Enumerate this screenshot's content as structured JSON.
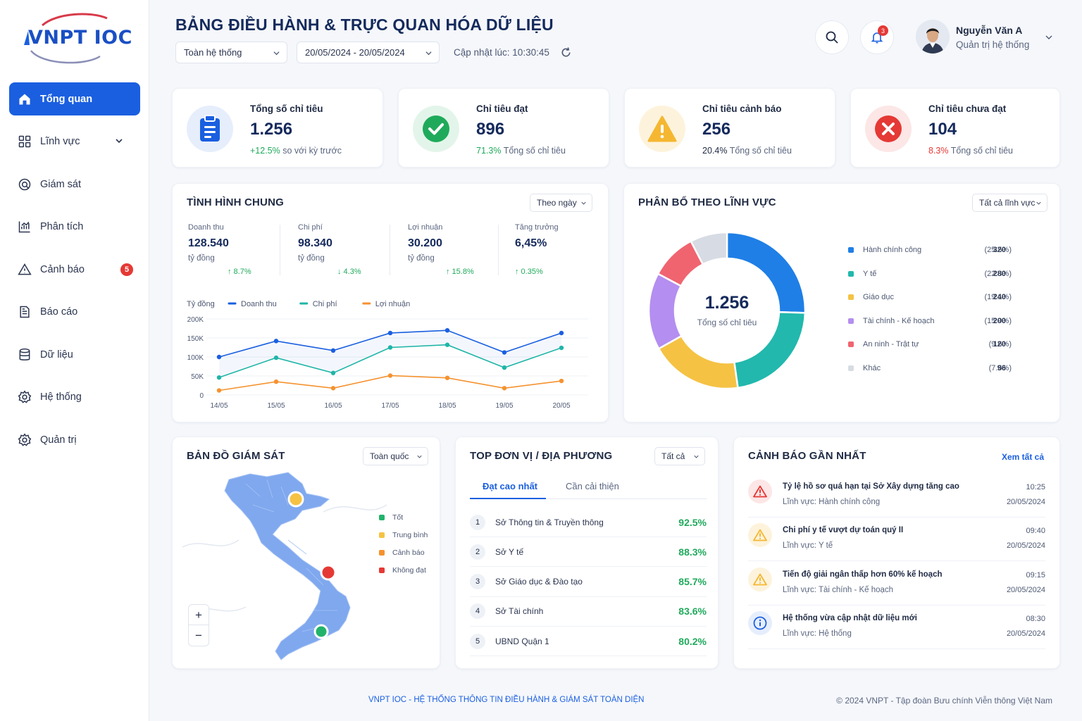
{
  "brand": {
    "logo_text": "VNPT IOC"
  },
  "sidebar": {
    "items": [
      {
        "label": "Tổng quan",
        "icon": "home-icon"
      },
      {
        "label": "Lĩnh vực",
        "icon": "grid-icon"
      },
      {
        "label": "Giám sát",
        "icon": "monitor-icon"
      },
      {
        "label": "Phân tích",
        "icon": "chart-icon"
      },
      {
        "label": "Cảnh báo",
        "icon": "warning-icon",
        "badge": "5"
      },
      {
        "label": "Báo cáo",
        "icon": "report-icon"
      },
      {
        "label": "Dữ liệu",
        "icon": "database-icon"
      },
      {
        "label": "Hệ thống",
        "icon": "settings-icon"
      },
      {
        "label": "Quản trị",
        "icon": "admin-icon"
      }
    ]
  },
  "header": {
    "title": "BẢNG ĐIỀU HÀNH & TRỰC QUAN HÓA DỮ LIỆU",
    "scope_select": "Toàn hệ thống",
    "date_range": "20/05/2024 - 20/05/2024",
    "updated": "Cập nhật lúc: 10:30:45",
    "notification_count": "3",
    "user_name": "Nguyễn Văn A",
    "user_role": "Quản trị hệ thống"
  },
  "kpis": [
    {
      "label": "Tổng số chỉ tiêu",
      "value": "1.256",
      "change": "+12.5%",
      "sub": "so với kỳ trước",
      "color": "#1a5fe0",
      "change_color": "#1faa5b"
    },
    {
      "label": "Chỉ tiêu đạt",
      "value": "896",
      "change": "71.3%",
      "sub": "Tổng số chỉ tiêu",
      "color": "#1faa5b",
      "change_color": "#1faa5b"
    },
    {
      "label": "Chỉ tiêu cảnh báo",
      "value": "256",
      "change": "20.4%",
      "sub": "Tổng số chỉ tiêu",
      "color": "#f5b731",
      "change_color": "#1f2a44"
    },
    {
      "label": "Chỉ tiêu chưa đạt",
      "value": "104",
      "change": "8.3%",
      "sub": "Tổng số chỉ tiêu",
      "color": "#e53935",
      "change_color": "#e53935"
    }
  ],
  "overview": {
    "title": "TÌNH HÌNH CHUNG",
    "period_select": "Theo ngày",
    "stats": [
      {
        "label": "Doanh thu",
        "value": "128.540",
        "unit": "tỷ đồng",
        "change": "↑ 8.7%"
      },
      {
        "label": "Chi phí",
        "value": "98.340",
        "unit": "tỷ đồng",
        "change": "↓ 4.3%"
      },
      {
        "label": "Lợi nhuận",
        "value": "30.200",
        "unit": "tỷ đồng",
        "change": "↑ 15.8%"
      },
      {
        "label": "Tăng trưởng",
        "value": "6,45%",
        "unit": "",
        "change": "↑ 0.35%"
      }
    ]
  },
  "chart_data": [
    {
      "type": "line",
      "ylabel": "Tỷ đồng",
      "x": [
        "14/05",
        "15/05",
        "16/05",
        "17/05",
        "18/05",
        "19/05",
        "20/05"
      ],
      "y_ticks": [
        "200K",
        "150K",
        "100K",
        "50K",
        "0"
      ],
      "ylim": [
        0,
        200000
      ],
      "grid": true,
      "legend_position": "top-left",
      "series": [
        {
          "name": "Doanh thu",
          "color": "#1a5fe0",
          "values": [
            100000,
            142000,
            117000,
            163000,
            170000,
            112000,
            163000
          ]
        },
        {
          "name": "Chi phí",
          "color": "#1fb5a8",
          "values": [
            46000,
            98000,
            58000,
            125000,
            132000,
            72000,
            124000
          ]
        },
        {
          "name": "Lợi nhuận",
          "color": "#f5922f",
          "values": [
            12000,
            35000,
            18000,
            51000,
            45000,
            18000,
            37000
          ]
        }
      ]
    },
    {
      "type": "pie",
      "title": "PHÂN BỔ THEO LĨNH VỰC",
      "center_value": "1.256",
      "center_label": "Tổng số chỉ tiêu",
      "filter_select": "Tất cả lĩnh vực",
      "legend_position": "right",
      "slices": [
        {
          "name": "Hành chính công",
          "value": 320,
          "pct": "(25.5%)",
          "color": "#1f7fe6"
        },
        {
          "name": "Y tế",
          "value": 280,
          "pct": "(22.3%)",
          "color": "#22b8ad"
        },
        {
          "name": "Giáo dục",
          "value": 240,
          "pct": "(19.1%)",
          "color": "#f5c244"
        },
        {
          "name": "Tài chính - Kế hoạch",
          "value": 200,
          "pct": "(15.9%)",
          "color": "#b48ef0"
        },
        {
          "name": "An ninh - Trật tự",
          "value": 120,
          "pct": "(9.6%)",
          "color": "#f06470"
        },
        {
          "name": "Khác",
          "value": 96,
          "pct": "(7.6%)",
          "color": "#d7dbe3"
        }
      ]
    }
  ],
  "map": {
    "title": "BẢN ĐỒ GIÁM SÁT",
    "region_select": "Toàn quốc",
    "legend": [
      {
        "label": "Tốt",
        "color": "#22b36b"
      },
      {
        "label": "Trung bình",
        "color": "#f5c244"
      },
      {
        "label": "Cảnh báo",
        "color": "#f5922f"
      },
      {
        "label": "Không đạt",
        "color": "#e53935"
      }
    ],
    "zoom_in": "+",
    "zoom_out": "−"
  },
  "ranking": {
    "title": "TOP ĐƠN VỊ / ĐỊA PHƯƠNG",
    "filter_select": "Tất cả",
    "tabs": [
      "Đạt cao nhất",
      "Cần cải thiện"
    ],
    "rows": [
      {
        "rank": "1",
        "name": "Sở Thông tin & Truyền thông",
        "value": "92.5%"
      },
      {
        "rank": "2",
        "name": "Sở Y tế",
        "value": "88.3%"
      },
      {
        "rank": "3",
        "name": "Sở Giáo dục & Đào tạo",
        "value": "85.7%"
      },
      {
        "rank": "4",
        "name": "Sở Tài chính",
        "value": "83.6%"
      },
      {
        "rank": "5",
        "name": "UBND Quận 1",
        "value": "80.2%"
      }
    ]
  },
  "alerts": {
    "title": "CẢNH BÁO GẦN NHẤT",
    "view_all": "Xem tất cả",
    "items": [
      {
        "title": "Tỷ lệ hồ sơ quá hạn tại Sở Xây dựng tăng cao",
        "sub": "Lĩnh vực: Hành chính công",
        "time": "10:25",
        "date": "20/05/2024",
        "icon": "alert-triangle-red-icon",
        "color": "#e53935"
      },
      {
        "title": "Chi phí y tế vượt dự toán quý II",
        "sub": "Lĩnh vực: Y tế",
        "time": "09:40",
        "date": "20/05/2024",
        "icon": "alert-triangle-yellow-icon",
        "color": "#f5b731"
      },
      {
        "title": "Tiến độ giải ngân thấp hơn 60% kế hoạch",
        "sub": "Lĩnh vực: Tài chính - Kế hoạch",
        "time": "09:15",
        "date": "20/05/2024",
        "icon": "alert-triangle-yellow-icon",
        "color": "#f5b731"
      },
      {
        "title": "Hệ thống vừa cập nhật dữ liệu mới",
        "sub": "Lĩnh vực: Hệ thống",
        "time": "08:30",
        "date": "20/05/2024",
        "icon": "info-icon",
        "color": "#1a5fe0"
      }
    ]
  },
  "footer": {
    "left": "VNPT IOC - HỆ THỐNG THÔNG TIN ĐIỀU HÀNH & GIÁM SÁT TOÀN DIỆN",
    "right": "© 2024 VNPT - Tập đoàn Bưu chính Viễn thông Việt Nam"
  }
}
